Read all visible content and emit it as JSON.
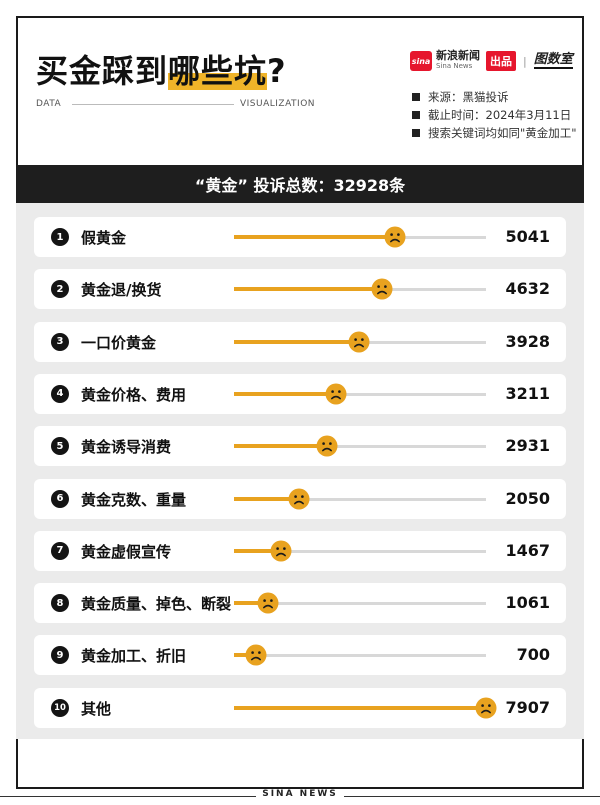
{
  "title_part1": "买金踩到",
  "title_highlight": "哪些坑",
  "title_end": "?",
  "label_left": "DATA",
  "label_right": "VISUALIZATION",
  "brand": {
    "logo_text": "sina",
    "cn": "新浪新闻",
    "en": "Sina News",
    "badge": "出品",
    "separator": "|",
    "partner": "图数室"
  },
  "meta": [
    "来源：黑猫投诉",
    "截止时间：2024年3月11日",
    "搜索关键词均如同\"黄金加工\""
  ],
  "chart_header": "“黄金” 投诉总数：32928条",
  "footer": "SINA NEWS",
  "colors": {
    "accent": "#e8a21f",
    "header_bg": "#1e1e1e",
    "panel_bg": "#ebebeb"
  },
  "chart_data": {
    "type": "bar",
    "title": "“黄金” 投诉总数：32928条",
    "categories": [
      "假黄金",
      "黄金退/换货",
      "一口价黄金",
      "黄金价格、费用",
      "黄金诱导消费",
      "黄金克数、重量",
      "黄金虚假宣传",
      "黄金质量、掉色、断裂",
      "黄金加工、折旧",
      "其他"
    ],
    "values": [
      5041,
      4632,
      3928,
      3211,
      2931,
      2050,
      1467,
      1061,
      700,
      7907
    ],
    "ranks": [
      "1",
      "2",
      "3",
      "4",
      "5",
      "6",
      "7",
      "8",
      "9",
      "10"
    ],
    "xlim": [
      0,
      7907
    ],
    "marker_icon": "sad-face-icon"
  }
}
